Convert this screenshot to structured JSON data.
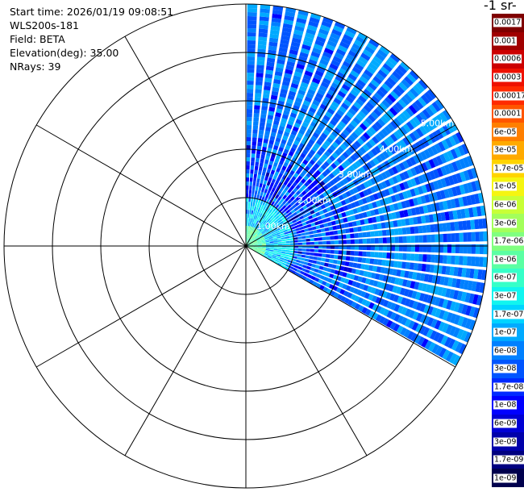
{
  "header": {
    "start_time": "Start time: 2026/01/19 09:08:51",
    "instrument": "WLS200s-181",
    "field": "Field: BETA",
    "elevation": "Elevation(deg): 35.00",
    "nrays": "NRays: 39"
  },
  "colorbar": {
    "unit_title": "-1 sr-",
    "labels": [
      "0.0017",
      "0.001",
      "0.0006",
      "0.0003",
      "0.00017",
      "0.0001",
      "6e-05",
      "3e-05",
      "1.7e-05",
      "1e-05",
      "6e-06",
      "3e-06",
      "1.7e-06",
      "1e-06",
      "6e-07",
      "3e-07",
      "1.7e-07",
      "1e-07",
      "6e-08",
      "3e-08",
      "1.7e-08",
      "1e-08",
      "6e-09",
      "3e-09",
      "1.7e-09",
      "1e-09"
    ],
    "colors": [
      "#7f0000",
      "#a00000",
      "#cc0000",
      "#ee1100",
      "#ff2a00",
      "#ff5500",
      "#ff7f00",
      "#ffaa00",
      "#ffd400",
      "#f5f511",
      "#c8ff36",
      "#a3ff5b",
      "#80ff80",
      "#5bffa3",
      "#36ffc8",
      "#11f5ef",
      "#00d4ff",
      "#00aaff",
      "#0080ff",
      "#0055ff",
      "#002aff",
      "#0000ff",
      "#0000d4",
      "#0000aa",
      "#000080",
      "#00004d"
    ]
  },
  "chart_data": {
    "type": "heatmap",
    "projection": "polar PPI scan",
    "field": "BETA",
    "elevation_deg": 35.0,
    "n_rays": 39,
    "azimuth_range_deg": [
      0,
      120
    ],
    "range_ring_labels": [
      "1.00km",
      "2.00km",
      "3.00km",
      "4.00km",
      "5.00km"
    ],
    "range_ring_values_km": [
      1.0,
      2.0,
      3.0,
      4.0,
      5.0
    ],
    "max_range_km": 5.0,
    "spoke_interval_deg": 30,
    "colorscale_range": [
      1e-09,
      0.0017
    ],
    "dominant_value_far_range": "1e-07 to 6e-08",
    "near_range_values": "1e-06 to 1e-05"
  }
}
